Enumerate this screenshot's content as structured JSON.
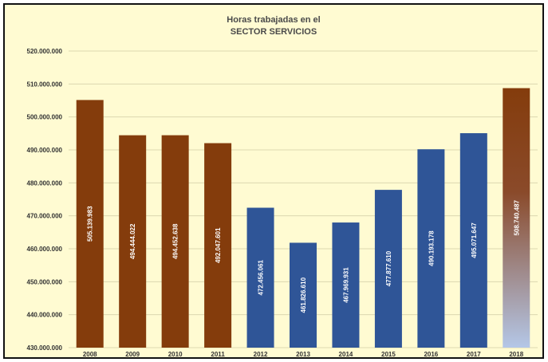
{
  "chart_data": {
    "type": "bar",
    "title": "Horas trabajadas en el",
    "subtitle": "SECTOR SERVICIOS",
    "categories": [
      "2008",
      "2009",
      "2010",
      "2011",
      "2012",
      "2013",
      "2014",
      "2015",
      "2016",
      "2017",
      "2018"
    ],
    "values": [
      505139983,
      494444022,
      494452638,
      492047601,
      472456061,
      461826610,
      467969931,
      477877610,
      490193178,
      495071647,
      508740487
    ],
    "data_labels": [
      "505.139.983",
      "494.444.022",
      "494.452.638",
      "492.047.601",
      "472.456.061",
      "461.826.610",
      "467.969.931",
      "477.877.610",
      "490.193.178",
      "495.071.647",
      "508.740.487"
    ],
    "bar_colors": [
      "#843c0c",
      "#843c0c",
      "#843c0c",
      "#843c0c",
      "#2f5597",
      "#2f5597",
      "#2f5597",
      "#2f5597",
      "#2f5597",
      "#2f5597",
      "gradient"
    ],
    "gradient_colors": {
      "top": "#843c0c",
      "bottom": "#b4c7e7"
    },
    "ylim": [
      430000000,
      520000000
    ],
    "yticks": [
      {
        "value": 430000000,
        "label": "430.000.000"
      },
      {
        "value": 440000000,
        "label": "440.000.000"
      },
      {
        "value": 450000000,
        "label": "450.000.000"
      },
      {
        "value": 460000000,
        "label": "460.000.000"
      },
      {
        "value": 470000000,
        "label": "470.000.000"
      },
      {
        "value": 480000000,
        "label": "480.000.000"
      },
      {
        "value": 490000000,
        "label": "490.000.000"
      },
      {
        "value": 500000000,
        "label": "500.000.000"
      },
      {
        "value": 510000000,
        "label": "510.000.000"
      },
      {
        "value": 520000000,
        "label": "520.000.000"
      }
    ],
    "grid": true,
    "background": "#fffbd2"
  }
}
